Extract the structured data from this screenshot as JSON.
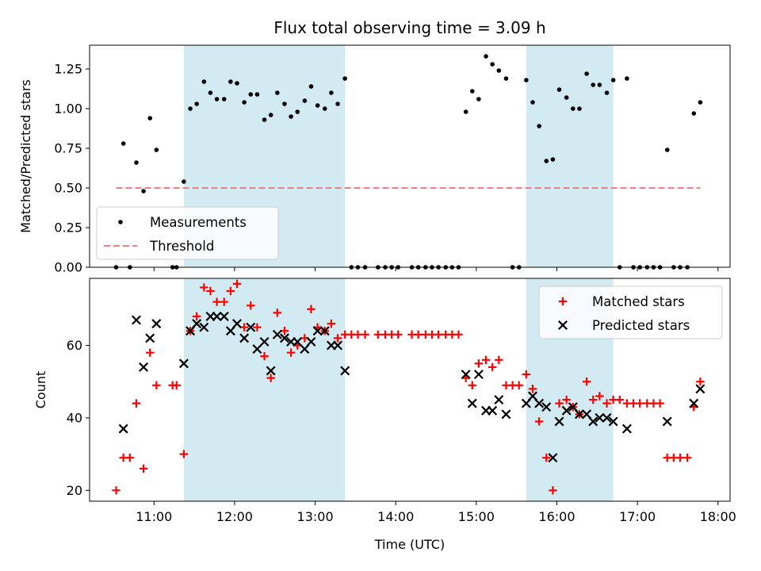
{
  "chart_data": {
    "type": "scatter",
    "title": "Flux total observing time = 3.09 h",
    "xlabel": "Time (UTC)",
    "x_unit": "hours (UTC)",
    "xlim": [
      10.2,
      18.15
    ],
    "xticks": [
      11,
      12,
      13,
      14,
      15,
      16,
      17,
      18
    ],
    "xtick_labels": [
      "11:00",
      "12:00",
      "13:00",
      "14:00",
      "15:00",
      "16:00",
      "17:00",
      "18:00"
    ],
    "shaded_intervals": [
      [
        11.37,
        13.37
      ],
      [
        15.62,
        16.7
      ]
    ],
    "shade_color": "#add8e6",
    "panels": [
      {
        "ylabel": "Matched/Predicted stars",
        "ylim": [
          0,
          1.4
        ],
        "yticks": [
          0,
          0.25,
          0.5,
          0.75,
          1.0,
          1.25
        ],
        "ytick_labels": [
          "0.00",
          "0.25",
          "0.50",
          "0.75",
          "1.00",
          "1.25"
        ],
        "legend_position": "lower-left",
        "series": [
          {
            "name": "Measurements",
            "marker": "dot",
            "color": "#000000",
            "points": [
              [
                10.53,
                0
              ],
              [
                10.62,
                0.78
              ],
              [
                10.7,
                0
              ],
              [
                10.78,
                0.66
              ],
              [
                10.87,
                0.48
              ],
              [
                10.95,
                0.94
              ],
              [
                11.03,
                0.74
              ],
              [
                11.23,
                0
              ],
              [
                11.28,
                0
              ],
              [
                11.37,
                0.54
              ],
              [
                11.45,
                1.0
              ],
              [
                11.53,
                1.03
              ],
              [
                11.62,
                1.17
              ],
              [
                11.7,
                1.1
              ],
              [
                11.78,
                1.06
              ],
              [
                11.87,
                1.06
              ],
              [
                11.95,
                1.17
              ],
              [
                12.03,
                1.16
              ],
              [
                12.12,
                1.04
              ],
              [
                12.2,
                1.09
              ],
              [
                12.28,
                1.09
              ],
              [
                12.37,
                0.93
              ],
              [
                12.45,
                0.96
              ],
              [
                12.53,
                1.1
              ],
              [
                12.62,
                1.03
              ],
              [
                12.7,
                0.95
              ],
              [
                12.78,
                0.98
              ],
              [
                12.87,
                1.05
              ],
              [
                12.95,
                1.14
              ],
              [
                13.03,
                1.02
              ],
              [
                13.12,
                1.0
              ],
              [
                13.2,
                1.1
              ],
              [
                13.28,
                1.03
              ],
              [
                13.37,
                1.19
              ],
              [
                13.45,
                0
              ],
              [
                13.53,
                0
              ],
              [
                13.62,
                0
              ],
              [
                13.78,
                0
              ],
              [
                13.87,
                0
              ],
              [
                13.95,
                0
              ],
              [
                14.03,
                0
              ],
              [
                14.2,
                0
              ],
              [
                14.28,
                0
              ],
              [
                14.37,
                0
              ],
              [
                14.45,
                0
              ],
              [
                14.53,
                0
              ],
              [
                14.62,
                0
              ],
              [
                14.7,
                0
              ],
              [
                14.78,
                0
              ],
              [
                14.87,
                0.98
              ],
              [
                14.95,
                1.11
              ],
              [
                15.03,
                1.06
              ],
              [
                15.12,
                1.33
              ],
              [
                15.2,
                1.28
              ],
              [
                15.28,
                1.24
              ],
              [
                15.37,
                1.19
              ],
              [
                15.45,
                0
              ],
              [
                15.53,
                0
              ],
              [
                15.62,
                1.18
              ],
              [
                15.7,
                1.04
              ],
              [
                15.78,
                0.89
              ],
              [
                15.87,
                0.67
              ],
              [
                15.95,
                0.68
              ],
              [
                16.03,
                1.12
              ],
              [
                16.12,
                1.07
              ],
              [
                16.2,
                1.0
              ],
              [
                16.28,
                1.0
              ],
              [
                16.37,
                1.22
              ],
              [
                16.45,
                1.15
              ],
              [
                16.53,
                1.15
              ],
              [
                16.62,
                1.1
              ],
              [
                16.7,
                1.18
              ],
              [
                16.78,
                0
              ],
              [
                16.87,
                1.19
              ],
              [
                16.95,
                0
              ],
              [
                17.03,
                0
              ],
              [
                17.12,
                0
              ],
              [
                17.2,
                0
              ],
              [
                17.28,
                0
              ],
              [
                17.37,
                0.74
              ],
              [
                17.45,
                0
              ],
              [
                17.53,
                0
              ],
              [
                17.62,
                0
              ],
              [
                17.7,
                0.97
              ],
              [
                17.78,
                1.04
              ]
            ]
          },
          {
            "name": "Threshold",
            "marker": "dashed-line",
            "color": "#f08080",
            "points": [
              [
                10.53,
                0.5
              ],
              [
                17.78,
                0.5
              ]
            ]
          }
        ]
      },
      {
        "ylabel": "Count",
        "ylim": [
          17,
          78.5
        ],
        "yticks": [
          20,
          40,
          60
        ],
        "ytick_labels": [
          "20",
          "40",
          "60"
        ],
        "legend_position": "top-right",
        "series": [
          {
            "name": "Matched stars",
            "marker": "plus",
            "color": "#ff0000",
            "points": [
              [
                10.53,
                20
              ],
              [
                10.62,
                29
              ],
              [
                10.7,
                29
              ],
              [
                10.78,
                44
              ],
              [
                10.87,
                26
              ],
              [
                10.95,
                58
              ],
              [
                11.03,
                49
              ],
              [
                11.23,
                49
              ],
              [
                11.28,
                49
              ],
              [
                11.37,
                30
              ],
              [
                11.45,
                64
              ],
              [
                11.53,
                68
              ],
              [
                11.62,
                76
              ],
              [
                11.7,
                75
              ],
              [
                11.78,
                72
              ],
              [
                11.87,
                72
              ],
              [
                11.95,
                75
              ],
              [
                12.03,
                77
              ],
              [
                12.12,
                65
              ],
              [
                12.2,
                71
              ],
              [
                12.28,
                65
              ],
              [
                12.37,
                57
              ],
              [
                12.45,
                51
              ],
              [
                12.53,
                69
              ],
              [
                12.62,
                64
              ],
              [
                12.7,
                58
              ],
              [
                12.78,
                60
              ],
              [
                12.87,
                62
              ],
              [
                12.95,
                70
              ],
              [
                13.03,
                65
              ],
              [
                13.12,
                64
              ],
              [
                13.2,
                66
              ],
              [
                13.28,
                62
              ],
              [
                13.37,
                63
              ],
              [
                13.45,
                63
              ],
              [
                13.53,
                63
              ],
              [
                13.62,
                63
              ],
              [
                13.78,
                63
              ],
              [
                13.87,
                63
              ],
              [
                13.95,
                63
              ],
              [
                14.03,
                63
              ],
              [
                14.2,
                63
              ],
              [
                14.28,
                63
              ],
              [
                14.37,
                63
              ],
              [
                14.45,
                63
              ],
              [
                14.53,
                63
              ],
              [
                14.62,
                63
              ],
              [
                14.7,
                63
              ],
              [
                14.78,
                63
              ],
              [
                14.87,
                51
              ],
              [
                14.95,
                49
              ],
              [
                15.03,
                55
              ],
              [
                15.12,
                56
              ],
              [
                15.2,
                54
              ],
              [
                15.28,
                56
              ],
              [
                15.37,
                49
              ],
              [
                15.45,
                49
              ],
              [
                15.53,
                49
              ],
              [
                15.62,
                52
              ],
              [
                15.7,
                48
              ],
              [
                15.78,
                39
              ],
              [
                15.87,
                29
              ],
              [
                15.95,
                20
              ],
              [
                16.03,
                44
              ],
              [
                16.12,
                45
              ],
              [
                16.2,
                43
              ],
              [
                16.28,
                41
              ],
              [
                16.37,
                50
              ],
              [
                16.45,
                45
              ],
              [
                16.53,
                46
              ],
              [
                16.62,
                44
              ],
              [
                16.7,
                45
              ],
              [
                16.78,
                45
              ],
              [
                16.87,
                44
              ],
              [
                16.95,
                44
              ],
              [
                17.03,
                44
              ],
              [
                17.12,
                44
              ],
              [
                17.2,
                44
              ],
              [
                17.28,
                44
              ],
              [
                17.37,
                29
              ],
              [
                17.45,
                29
              ],
              [
                17.53,
                29
              ],
              [
                17.62,
                29
              ],
              [
                17.7,
                43
              ],
              [
                17.78,
                50
              ]
            ]
          },
          {
            "name": "Predicted stars",
            "marker": "x",
            "color": "#000000",
            "points": [
              [
                10.62,
                37
              ],
              [
                10.78,
                67
              ],
              [
                10.87,
                54
              ],
              [
                10.95,
                62
              ],
              [
                11.03,
                66
              ],
              [
                11.37,
                55
              ],
              [
                11.45,
                64
              ],
              [
                11.53,
                66
              ],
              [
                11.62,
                65
              ],
              [
                11.7,
                68
              ],
              [
                11.78,
                68
              ],
              [
                11.87,
                68
              ],
              [
                11.95,
                64
              ],
              [
                12.03,
                66
              ],
              [
                12.12,
                62
              ],
              [
                12.2,
                65
              ],
              [
                12.28,
                59
              ],
              [
                12.37,
                61
              ],
              [
                12.45,
                53
              ],
              [
                12.53,
                63
              ],
              [
                12.62,
                62
              ],
              [
                12.7,
                61
              ],
              [
                12.78,
                61
              ],
              [
                12.87,
                59
              ],
              [
                12.95,
                61
              ],
              [
                13.03,
                64
              ],
              [
                13.12,
                64
              ],
              [
                13.2,
                60
              ],
              [
                13.28,
                60
              ],
              [
                13.37,
                53
              ],
              [
                14.87,
                52
              ],
              [
                14.95,
                44
              ],
              [
                15.03,
                52
              ],
              [
                15.12,
                42
              ],
              [
                15.2,
                42
              ],
              [
                15.28,
                45
              ],
              [
                15.37,
                41
              ],
              [
                15.62,
                44
              ],
              [
                15.7,
                46
              ],
              [
                15.78,
                44
              ],
              [
                15.87,
                43
              ],
              [
                15.95,
                29
              ],
              [
                16.03,
                39
              ],
              [
                16.12,
                42
              ],
              [
                16.2,
                43
              ],
              [
                16.28,
                41
              ],
              [
                16.37,
                41
              ],
              [
                16.45,
                39
              ],
              [
                16.53,
                40
              ],
              [
                16.62,
                40
              ],
              [
                16.7,
                39
              ],
              [
                16.87,
                37
              ],
              [
                17.37,
                39
              ],
              [
                17.7,
                44
              ],
              [
                17.78,
                48
              ]
            ]
          }
        ]
      }
    ]
  }
}
